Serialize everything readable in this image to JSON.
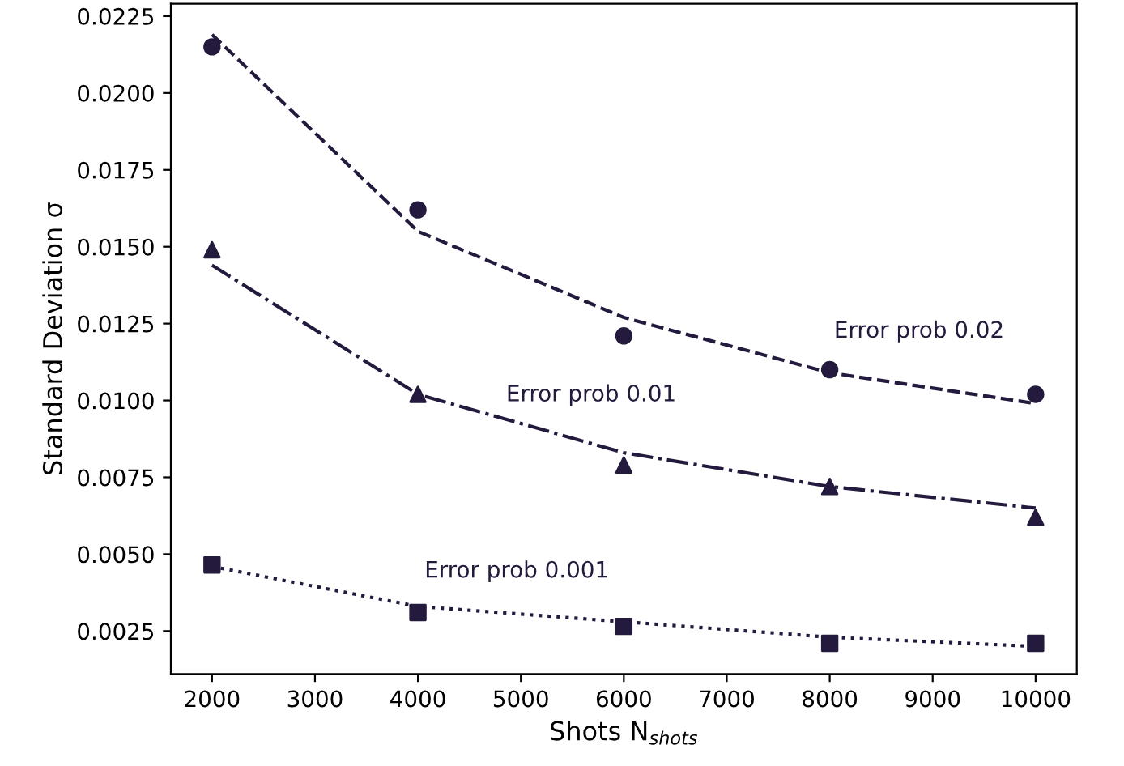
{
  "chart_data": {
    "type": "scatter",
    "xlabel": "Shots N$_{shots}$",
    "ylabel": "Standard Deviation σ",
    "x": [
      2000,
      4000,
      6000,
      8000,
      10000
    ],
    "series": [
      {
        "marker": "circle",
        "color": "#231a3d",
        "values": [
          0.0215,
          0.0162,
          0.0121,
          0.011,
          0.0102
        ]
      },
      {
        "type": "line",
        "line_style": "dashed",
        "marker": "none",
        "color": "#231a3d",
        "values": [
          0.0219,
          0.0155,
          0.0127,
          0.0109,
          0.0099
        ]
      },
      {
        "marker": "triangle",
        "color": "#231a3d",
        "values": [
          0.0149,
          0.0102,
          0.0079,
          0.0072,
          0.0062
        ]
      },
      {
        "type": "line",
        "line_style": "dashdot",
        "marker": "none",
        "color": "#231a3d",
        "values": [
          0.0144,
          0.0102,
          0.0083,
          0.0072,
          0.0065
        ]
      },
      {
        "marker": "square",
        "color": "#231a3d",
        "values": [
          0.00465,
          0.0031,
          0.00265,
          0.0021,
          0.0021
        ]
      },
      {
        "type": "line",
        "line_style": "dotted",
        "marker": "none",
        "color": "#231a3d",
        "values": [
          0.0046,
          0.0033,
          0.0028,
          0.0023,
          0.002
        ]
      }
    ],
    "annotations": [
      "Error prob 0.02",
      "Error prob 0.01",
      "Error prob 0.001"
    ],
    "xlim": [
      1600,
      10400
    ],
    "ylim": [
      0.0011,
      0.0229
    ],
    "xticks": [
      2000,
      3000,
      4000,
      5000,
      6000,
      7000,
      8000,
      9000,
      10000
    ],
    "yticks": [
      {
        "value": 0.0025,
        "label": "0.0025"
      },
      {
        "value": 0.005,
        "label": "0.0050"
      },
      {
        "value": 0.0075,
        "label": "0.0075"
      },
      {
        "value": 0.01,
        "label": "0.0100"
      },
      {
        "value": 0.0125,
        "label": "0.0125"
      },
      {
        "value": 0.015,
        "label": "0.0150"
      },
      {
        "value": 0.0175,
        "label": "0.0175"
      },
      {
        "value": 0.02,
        "label": "0.0200"
      },
      {
        "value": 0.0225,
        "label": "0.0225"
      }
    ],
    "grid": false,
    "legend": false
  }
}
